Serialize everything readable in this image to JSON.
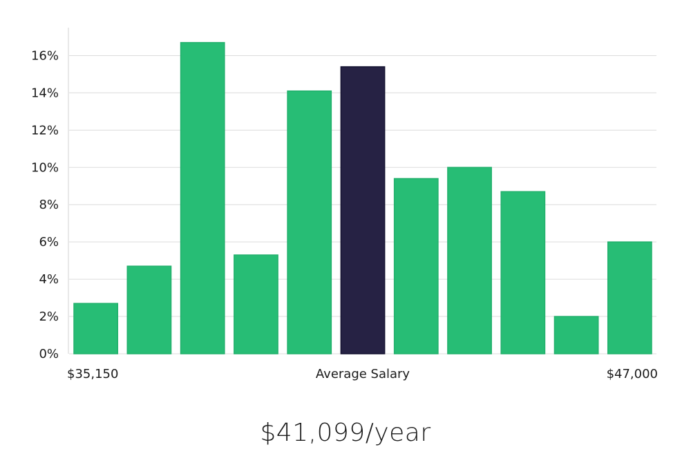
{
  "chart_data": {
    "type": "bar",
    "values": [
      2.7,
      4.7,
      16.7,
      5.3,
      14.1,
      15.4,
      9.4,
      10.0,
      8.7,
      2.0,
      6.0
    ],
    "highlight_index": 5,
    "ylim": [
      0,
      17.5
    ],
    "yticks": [
      0,
      2,
      4,
      6,
      8,
      10,
      12,
      14,
      16
    ],
    "ytick_labels": [
      "0%",
      "2%",
      "4%",
      "6%",
      "8%",
      "10%",
      "12%",
      "14%",
      "16%"
    ],
    "x_labels": {
      "left": "$35,150",
      "center": "Average Salary",
      "right": "$47,000"
    },
    "grid": true,
    "colors": {
      "bar": "#27bd75",
      "highlight": "#262244",
      "grid": "#dcdcdc"
    }
  },
  "salary_text": "$41,099/year"
}
